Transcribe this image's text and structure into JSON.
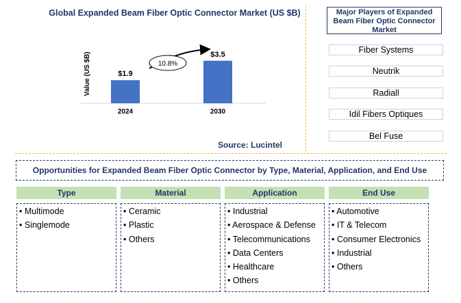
{
  "chart_data": {
    "type": "bar",
    "title": "Global Expanded Beam Fiber Optic Connector Market (US $B)",
    "categories": [
      "2024",
      "2030"
    ],
    "values": [
      1.9,
      3.5
    ],
    "value_labels": [
      "$1.9",
      "$3.5"
    ],
    "ylabel": "Value (US $B)",
    "xlabel": "",
    "ylim": [
      0,
      4.5
    ],
    "growth_annotation": "10.8%",
    "bar_color": "#4472c4",
    "source": "Source: Lucintel"
  },
  "players": {
    "title": "Major Players of Expanded Beam Fiber Optic Connector Market",
    "items": [
      "Fiber Systems",
      "Neutrik",
      "Radiall",
      "Idil Fibers Optiques",
      "Bel Fuse"
    ]
  },
  "opportunities": {
    "title": "Opportunities for Expanded Beam Fiber Optic Connector by Type, Material, Application, and End Use",
    "segments": [
      {
        "header": "Type",
        "items": [
          "Multimode",
          "Singlemode"
        ]
      },
      {
        "header": "Material",
        "items": [
          "Ceramic",
          "Plastic",
          "Others"
        ]
      },
      {
        "header": "Application",
        "items": [
          "Industrial",
          "Aerospace & Defense",
          "Telecommunications",
          "Data Centers",
          "Healthcare",
          "Others"
        ]
      },
      {
        "header": "End Use",
        "items": [
          "Automotive",
          "IT & Telecom",
          "Consumer Electronics",
          "Industrial",
          "Others"
        ]
      }
    ]
  }
}
